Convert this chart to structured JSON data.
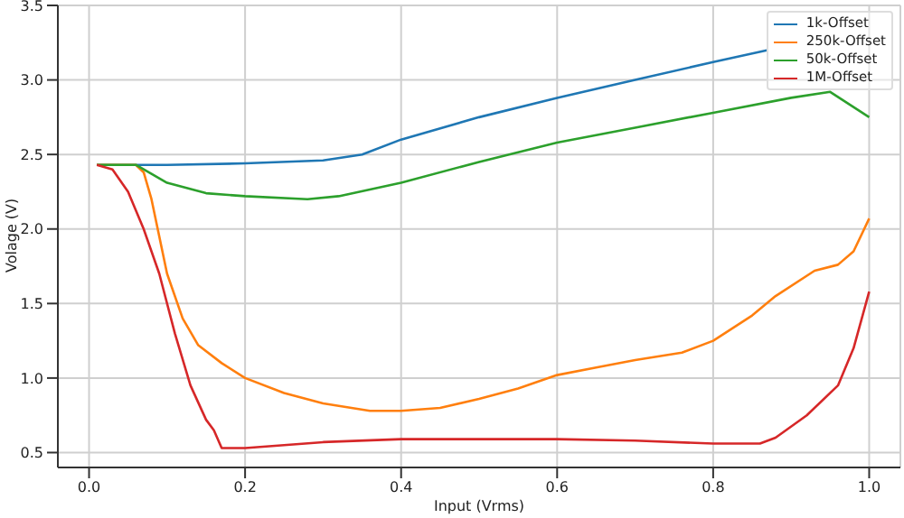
{
  "chart_data": {
    "type": "line",
    "xlabel": "Input (Vrms)",
    "ylabel": "Volage (V)",
    "xlim": [
      -0.04,
      1.04
    ],
    "ylim": [
      0.4,
      3.5
    ],
    "xticks": [
      {
        "value": 0,
        "label": "0.0"
      },
      0.2,
      0.4,
      0.6,
      0.8,
      {
        "value": 1,
        "label": "1.0"
      }
    ],
    "yticks": [
      0.5,
      {
        "value": 1,
        "label": "1.0"
      },
      1.5,
      {
        "value": 2,
        "label": "2.0"
      },
      2.5,
      {
        "value": 3,
        "label": "3.0"
      },
      3.5
    ],
    "grid": true,
    "legend": "top right",
    "marker": "none",
    "line_style": "solid",
    "series": [
      {
        "name": "1k-Offset",
        "color": "#1f77b4",
        "x": [
          0.01,
          0.05,
          0.07,
          0.1,
          0.2,
          0.3,
          0.35,
          0.4,
          0.5,
          0.6,
          0.7,
          0.8,
          0.87
        ],
        "values": [
          2.43,
          2.43,
          2.43,
          2.43,
          2.44,
          2.46,
          2.5,
          2.6,
          2.75,
          2.88,
          3.0,
          3.12,
          3.2
        ]
      },
      {
        "name": "250k-Offset",
        "color": "#ff7f0e",
        "x": [
          0.01,
          0.06,
          0.07,
          0.08,
          0.1,
          0.12,
          0.14,
          0.17,
          0.2,
          0.25,
          0.3,
          0.36,
          0.4,
          0.45,
          0.5,
          0.55,
          0.6,
          0.65,
          0.7,
          0.76,
          0.8,
          0.85,
          0.88,
          0.93,
          0.96,
          0.98,
          1.0
        ],
        "values": [
          2.43,
          2.43,
          2.38,
          2.2,
          1.7,
          1.4,
          1.22,
          1.1,
          1.0,
          0.9,
          0.83,
          0.78,
          0.78,
          0.8,
          0.86,
          0.93,
          1.02,
          1.07,
          1.12,
          1.17,
          1.25,
          1.42,
          1.55,
          1.72,
          1.76,
          1.85,
          2.07
        ]
      },
      {
        "name": "50k-Offset",
        "color": "#2ca02c",
        "x": [
          0.01,
          0.06,
          0.08,
          0.1,
          0.15,
          0.2,
          0.28,
          0.32,
          0.4,
          0.5,
          0.6,
          0.7,
          0.8,
          0.9,
          0.95,
          1.0
        ],
        "values": [
          2.43,
          2.43,
          2.37,
          2.31,
          2.24,
          2.22,
          2.2,
          2.22,
          2.31,
          2.45,
          2.58,
          2.68,
          2.78,
          2.88,
          2.92,
          2.75
        ]
      },
      {
        "name": "1M-Offset",
        "color": "#d62728",
        "x": [
          0.01,
          0.03,
          0.05,
          0.07,
          0.09,
          0.11,
          0.13,
          0.15,
          0.16,
          0.17,
          0.2,
          0.3,
          0.4,
          0.6,
          0.7,
          0.8,
          0.86,
          0.88,
          0.92,
          0.96,
          0.98,
          1.0
        ],
        "values": [
          2.43,
          2.4,
          2.25,
          2.0,
          1.7,
          1.3,
          0.95,
          0.72,
          0.65,
          0.53,
          0.53,
          0.57,
          0.59,
          0.59,
          0.58,
          0.56,
          0.56,
          0.6,
          0.75,
          0.95,
          1.2,
          1.58
        ]
      }
    ]
  }
}
